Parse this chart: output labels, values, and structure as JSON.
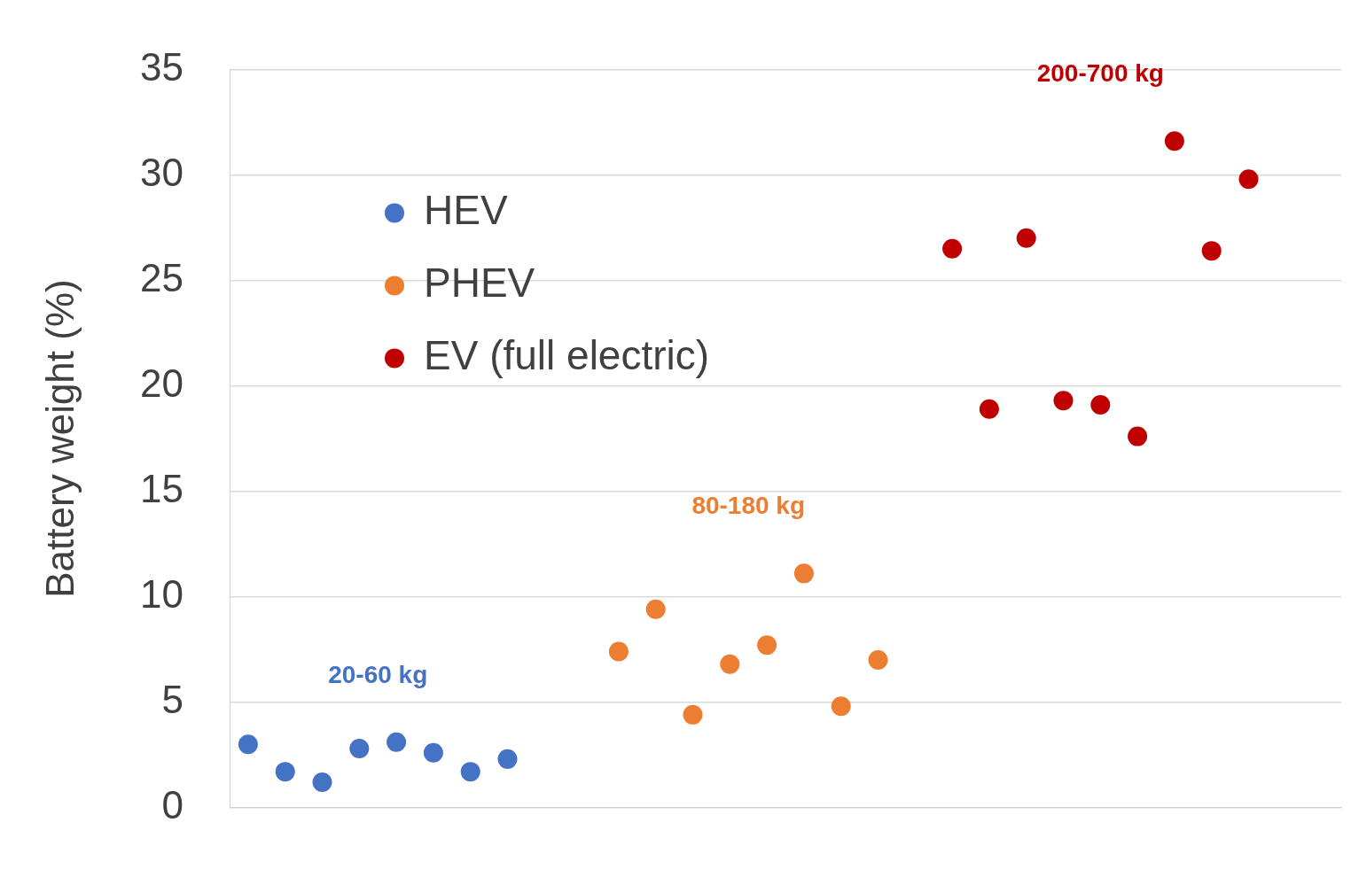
{
  "chart_data": {
    "type": "scatter",
    "ylabel": "Battery weight (%)",
    "categories": [
      null,
      null,
      null,
      null,
      null,
      null,
      null,
      null,
      null,
      null,
      null,
      null,
      null,
      null,
      null,
      null,
      null,
      null,
      null,
      null,
      null,
      null,
      null,
      null,
      null,
      null,
      null,
      null,
      null,
      null
    ],
    "series": [
      {
        "name": "HEV",
        "color": "#4472c4",
        "values": [
          3.0,
          1.7,
          1.2,
          2.8,
          3.1,
          2.6,
          1.7,
          2.3,
          null,
          null,
          null,
          null,
          null,
          null,
          null,
          null,
          null,
          null,
          null,
          null,
          null,
          null,
          null,
          null,
          null,
          null,
          null,
          null,
          null,
          null
        ]
      },
      {
        "name": "PHEV",
        "color": "#ed7d31",
        "values": [
          null,
          null,
          null,
          null,
          null,
          null,
          null,
          null,
          null,
          null,
          7.4,
          9.4,
          4.4,
          6.8,
          7.7,
          11.1,
          4.8,
          7.0,
          null,
          null,
          null,
          null,
          null,
          null,
          null,
          null,
          null,
          null,
          null,
          null
        ]
      },
      {
        "name": "EV (full electric)",
        "color": "#c00000",
        "values": [
          null,
          null,
          null,
          null,
          null,
          null,
          null,
          null,
          null,
          null,
          null,
          null,
          null,
          null,
          null,
          null,
          null,
          null,
          null,
          26.5,
          18.9,
          27.0,
          19.3,
          19.1,
          17.6,
          31.6,
          26.4,
          29.8,
          null,
          null
        ]
      }
    ],
    "annotations": [
      "20-60 kg",
      "80-180 kg",
      "200-700 kg"
    ],
    "ylim": [
      0,
      35
    ],
    "yticks": [
      0,
      5,
      10,
      15,
      20,
      25,
      30,
      35
    ],
    "grid": "y",
    "legend": "top left",
    "marker": "circle",
    "tick_labels": "y"
  }
}
